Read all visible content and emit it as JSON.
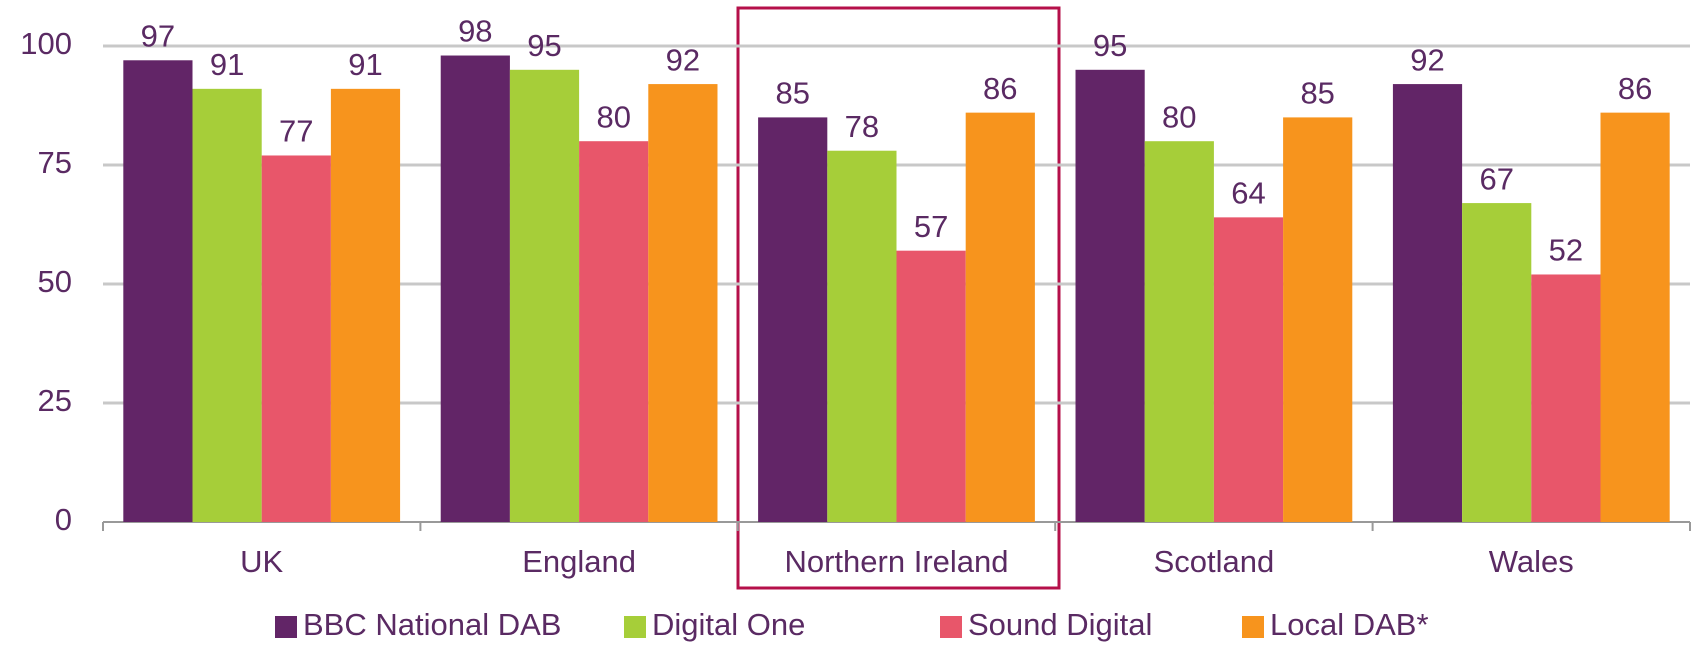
{
  "chart_data": {
    "type": "bar",
    "categories": [
      "UK",
      "England",
      "Northern Ireland",
      "Scotland",
      "Wales"
    ],
    "series": [
      {
        "name": "BBC National DAB",
        "color": "#622567",
        "values": [
          97,
          98,
          85,
          95,
          92
        ]
      },
      {
        "name": "Digital One",
        "color": "#a6ce39",
        "values": [
          91,
          95,
          78,
          80,
          67
        ]
      },
      {
        "name": "Sound Digital",
        "color": "#e8566a",
        "values": [
          77,
          80,
          57,
          64,
          52
        ]
      },
      {
        "name": "Local DAB*",
        "color": "#f7941d",
        "values": [
          91,
          92,
          86,
          85,
          86
        ]
      }
    ],
    "ylim": [
      0,
      100
    ],
    "yticks": [
      0,
      25,
      50,
      75,
      100
    ],
    "grid": true,
    "legend": "bottom"
  }
}
